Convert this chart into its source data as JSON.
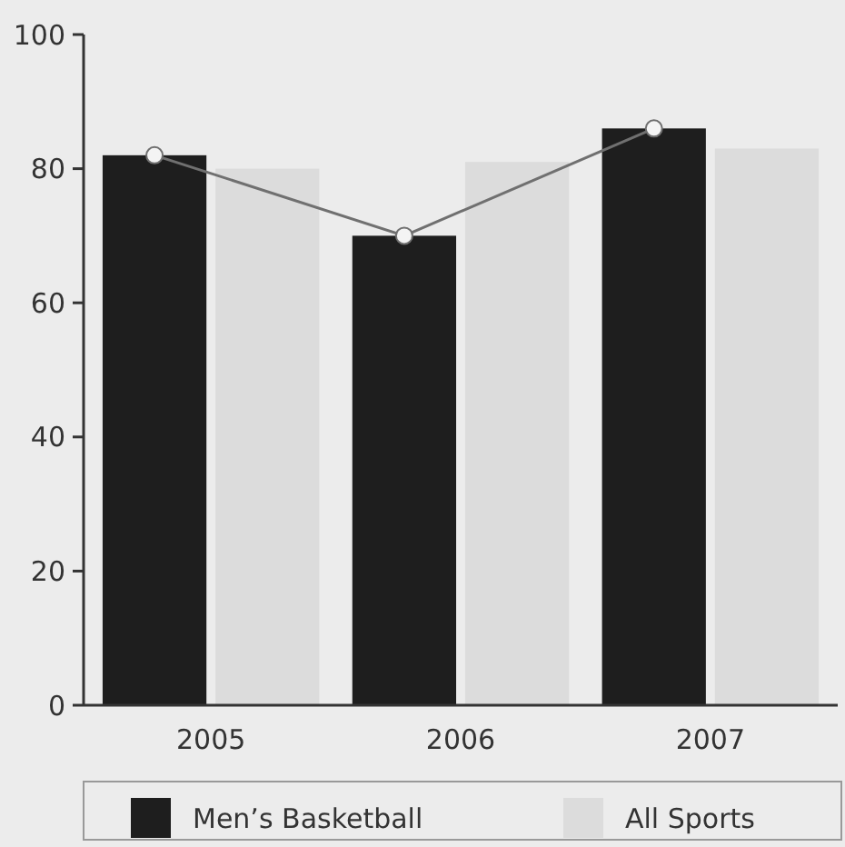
{
  "chart_data": {
    "type": "bar",
    "categories": [
      "2005",
      "2006",
      "2007"
    ],
    "series": [
      {
        "name": "Men’s Basketball",
        "color": "#1e1e1e",
        "values": [
          82,
          70,
          86
        ]
      },
      {
        "name": "All Sports",
        "color": "#dcdcdc",
        "values": [
          80,
          81,
          83
        ]
      },
      {
        "type": "line",
        "color": "#707070",
        "values": [
          82,
          70,
          86
        ],
        "marker": "circle"
      }
    ],
    "ylim": [
      0,
      100
    ],
    "yticks": [
      0,
      20,
      40,
      60,
      80,
      100
    ],
    "grid": false,
    "legend": "bottom"
  }
}
